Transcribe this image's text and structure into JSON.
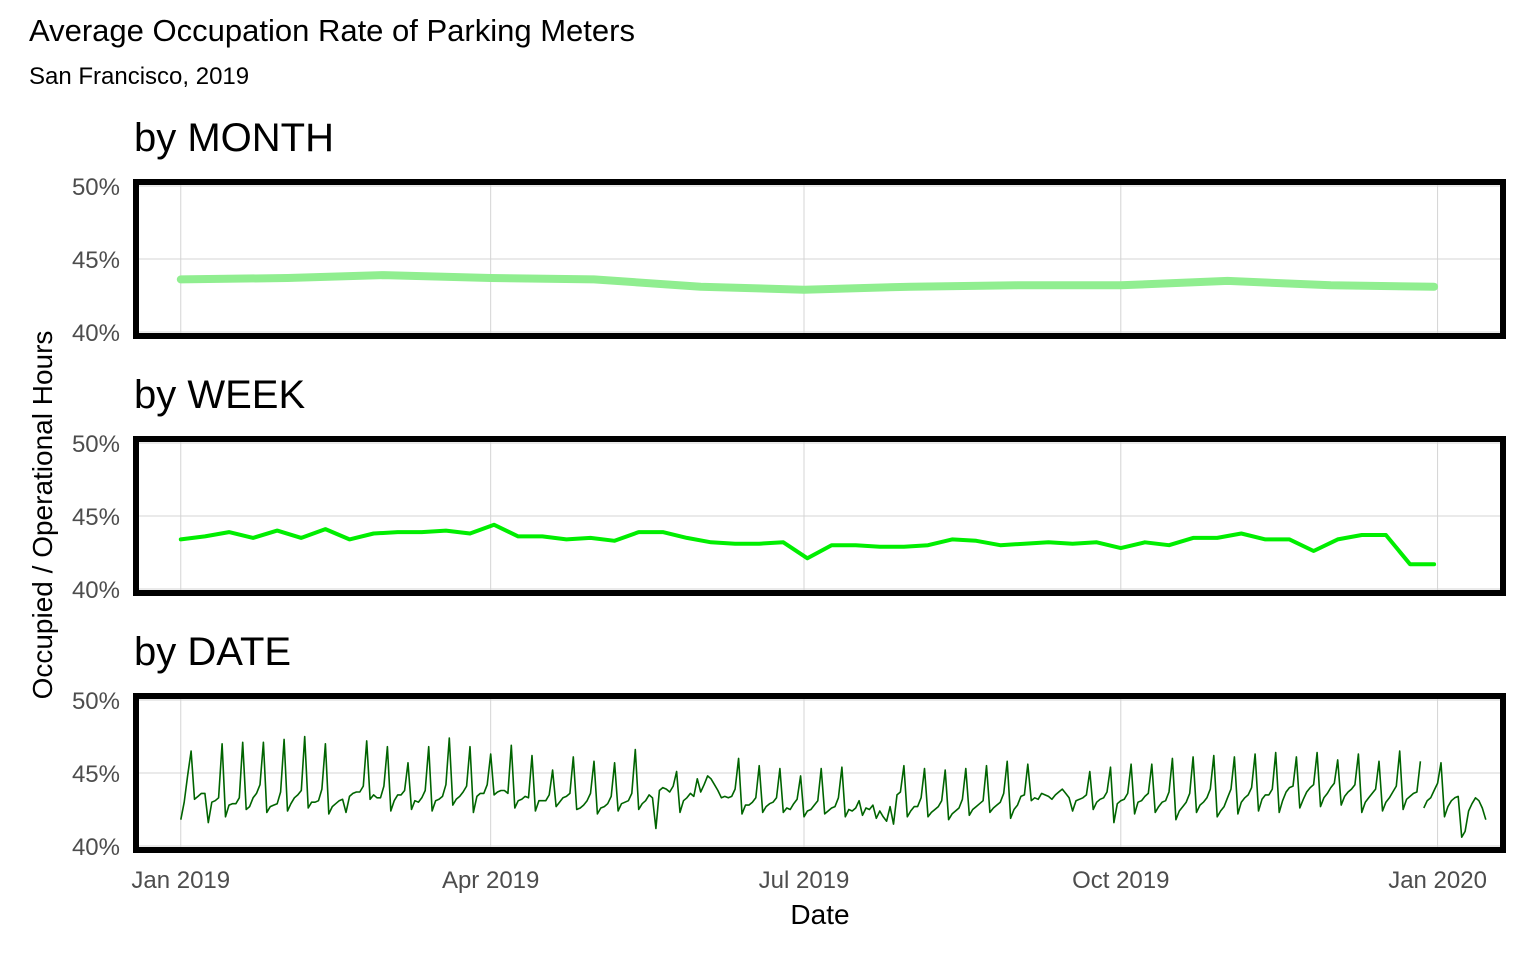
{
  "chart_data": {
    "type": "line",
    "title": "Average Occupation Rate of Parking Meters",
    "subtitle": "San Francisco, 2019",
    "xlabel": "Date",
    "ylabel": "Occupied / Operational Hours",
    "x_ticks": [
      "Jan 2019",
      "Apr 2019",
      "Jul 2019",
      "Oct 2019",
      "Jan 2020"
    ],
    "x_tick_dates": [
      "2019-01-01",
      "2019-04-01",
      "2019-07-01",
      "2019-10-01",
      "2020-01-01"
    ],
    "xlim": [
      "2018-12-19",
      "2020-01-20"
    ],
    "y_ticks": [
      "40%",
      "45%",
      "50%"
    ],
    "y_tick_values": [
      40,
      45,
      50
    ],
    "ylim": [
      40,
      50
    ],
    "grid": true,
    "panels": [
      {
        "title": "by MONTH",
        "color": "#90ee90",
        "x": [
          "2019-01-01",
          "2019-02-01",
          "2019-03-01",
          "2019-04-01",
          "2019-05-01",
          "2019-06-01",
          "2019-07-01",
          "2019-08-01",
          "2019-09-01",
          "2019-10-01",
          "2019-11-01",
          "2019-12-01",
          "2019-12-31"
        ],
        "values": [
          43.6,
          43.7,
          43.9,
          43.7,
          43.6,
          43.1,
          42.9,
          43.1,
          43.2,
          43.2,
          43.5,
          43.2,
          43.1
        ]
      },
      {
        "title": "by WEEK",
        "color": "#00ee00",
        "x": [
          "2019-01-01",
          "2019-01-08",
          "2019-01-15",
          "2019-01-22",
          "2019-01-29",
          "2019-02-05",
          "2019-02-12",
          "2019-02-19",
          "2019-02-26",
          "2019-03-05",
          "2019-03-12",
          "2019-03-19",
          "2019-03-26",
          "2019-04-02",
          "2019-04-09",
          "2019-04-16",
          "2019-04-23",
          "2019-04-30",
          "2019-05-07",
          "2019-05-14",
          "2019-05-21",
          "2019-05-28",
          "2019-06-04",
          "2019-06-11",
          "2019-06-18",
          "2019-06-25",
          "2019-07-02",
          "2019-07-09",
          "2019-07-16",
          "2019-07-23",
          "2019-07-30",
          "2019-08-06",
          "2019-08-13",
          "2019-08-20",
          "2019-08-27",
          "2019-09-03",
          "2019-09-10",
          "2019-09-17",
          "2019-09-24",
          "2019-10-01",
          "2019-10-08",
          "2019-10-15",
          "2019-10-22",
          "2019-10-29",
          "2019-11-05",
          "2019-11-12",
          "2019-11-19",
          "2019-11-26",
          "2019-12-03",
          "2019-12-10",
          "2019-12-17",
          "2019-12-24",
          "2019-12-31"
        ],
        "values": [
          43.4,
          43.6,
          43.9,
          43.5,
          44.0,
          43.5,
          44.1,
          43.4,
          43.8,
          43.9,
          43.9,
          44.0,
          43.8,
          44.4,
          43.6,
          43.6,
          43.4,
          43.5,
          43.3,
          43.9,
          43.9,
          43.5,
          43.2,
          43.1,
          43.1,
          43.2,
          42.1,
          43.0,
          43.0,
          42.9,
          42.9,
          43.0,
          43.4,
          43.3,
          43.0,
          43.1,
          43.2,
          43.1,
          43.2,
          42.8,
          43.2,
          43.0,
          43.5,
          43.5,
          43.8,
          43.4,
          43.4,
          42.6,
          43.4,
          43.7,
          43.7,
          41.7,
          41.7
        ]
      },
      {
        "title": "by DATE",
        "color": "#006400",
        "start": "2019-01-01",
        "step_days": 1,
        "gaps": [
          [
            360,
            361
          ]
        ],
        "values": [
          41.8,
          43.0,
          44.8,
          46.5,
          43.2,
          43.4,
          43.6,
          43.6,
          41.6,
          43.0,
          43.1,
          43.3,
          47.0,
          42.0,
          42.8,
          42.9,
          42.9,
          43.3,
          47.1,
          42.5,
          42.7,
          43.3,
          43.6,
          44.2,
          47.1,
          42.3,
          42.7,
          42.8,
          42.9,
          43.7,
          47.3,
          42.4,
          42.9,
          43.3,
          43.5,
          43.8,
          47.5,
          42.6,
          43.0,
          43.0,
          43.1,
          43.9,
          47.0,
          42.2,
          42.7,
          42.9,
          43.1,
          43.2,
          42.3,
          43.4,
          43.6,
          43.7,
          43.7,
          44.1,
          47.2,
          43.2,
          43.5,
          43.3,
          43.3,
          44.1,
          46.8,
          42.4,
          43.1,
          43.5,
          43.5,
          43.8,
          45.7,
          42.5,
          43.1,
          43.0,
          43.3,
          43.8,
          46.8,
          42.4,
          43.1,
          43.2,
          43.4,
          44.2,
          47.4,
          42.8,
          43.2,
          43.4,
          43.7,
          44.1,
          46.8,
          42.3,
          43.4,
          43.6,
          43.6,
          44.2,
          46.3,
          43.5,
          43.7,
          43.8,
          43.8,
          43.6,
          46.9,
          42.6,
          43.1,
          43.2,
          43.4,
          43.3,
          46.2,
          42.4,
          43.1,
          43.1,
          43.1,
          43.5,
          45.2,
          42.7,
          43.0,
          43.3,
          43.4,
          43.6,
          46.1,
          42.5,
          42.6,
          42.8,
          43.1,
          43.6,
          45.8,
          42.2,
          42.6,
          42.7,
          42.9,
          43.4,
          45.7,
          42.4,
          42.9,
          43.0,
          43.1,
          43.6,
          46.6,
          42.5,
          42.9,
          43.1,
          43.5,
          43.3,
          41.2,
          43.8,
          44.0,
          43.9,
          43.7,
          44.1,
          45.1,
          42.3,
          43.1,
          43.3,
          43.6,
          43.4,
          44.6,
          43.7,
          44.2,
          44.8,
          44.6,
          44.2,
          43.8,
          43.3,
          43.4,
          43.3,
          43.4,
          43.9,
          46.0,
          42.2,
          42.8,
          42.8,
          43.0,
          43.3,
          45.5,
          42.3,
          42.7,
          42.9,
          43.0,
          43.3,
          45.3,
          42.3,
          42.6,
          42.5,
          42.9,
          43.2,
          44.8,
          42.0,
          42.4,
          42.5,
          42.8,
          43.1,
          45.3,
          42.2,
          42.4,
          42.6,
          42.7,
          43.3,
          45.4,
          42.0,
          42.5,
          42.4,
          42.6,
          43.1,
          42.1,
          42.6,
          42.5,
          42.8,
          41.9,
          42.4,
          42.0,
          41.7,
          42.7,
          41.5,
          43.5,
          43.7,
          45.5,
          42.0,
          42.4,
          42.7,
          42.7,
          43.3,
          45.3,
          42.0,
          42.3,
          42.5,
          42.7,
          43.1,
          45.2,
          41.8,
          42.2,
          42.4,
          42.6,
          43.2,
          45.3,
          42.1,
          42.5,
          42.7,
          42.9,
          43.1,
          45.5,
          42.3,
          42.6,
          42.8,
          43.0,
          43.6,
          45.8,
          41.9,
          42.5,
          42.8,
          43.4,
          43.5,
          45.6,
          43.1,
          43.3,
          43.2,
          43.6,
          43.5,
          43.4,
          43.2,
          43.5,
          43.7,
          43.9,
          43.6,
          43.3,
          42.4,
          43.1,
          43.2,
          43.3,
          43.5,
          45.1,
          42.5,
          43.0,
          43.2,
          43.3,
          43.7,
          45.4,
          41.6,
          42.9,
          43.1,
          43.2,
          43.6,
          45.6,
          42.2,
          43.0,
          43.1,
          43.4,
          43.6,
          45.6,
          42.3,
          42.7,
          43.0,
          43.1,
          43.7,
          46.0,
          41.8,
          42.4,
          42.7,
          43.0,
          43.6,
          46.1,
          42.3,
          42.8,
          43.0,
          43.3,
          43.9,
          46.2,
          42.0,
          42.4,
          42.7,
          43.3,
          43.9,
          46.1,
          42.2,
          43.0,
          43.3,
          43.5,
          44.0,
          46.3,
          42.4,
          43.2,
          43.5,
          43.5,
          43.9,
          46.4,
          42.3,
          43.1,
          43.7,
          44.0,
          44.1,
          46.1,
          42.6,
          43.2,
          43.7,
          44.0,
          44.2,
          46.4,
          42.7,
          43.3,
          43.6,
          44.0,
          44.3,
          45.9,
          42.8,
          43.4,
          43.7,
          43.9,
          44.2,
          46.3,
          42.3,
          43.0,
          43.3,
          43.6,
          43.9,
          45.8,
          42.4,
          43.0,
          43.3,
          43.7,
          44.1,
          46.5,
          42.5,
          43.2,
          43.4,
          43.6,
          43.7,
          45.8,
          42.6,
          43.1,
          43.3,
          43.8,
          44.3,
          45.7,
          42.0,
          42.7,
          43.1,
          43.3,
          43.4,
          40.6,
          41.0,
          42.4,
          42.9,
          43.3,
          43.1,
          42.6,
          41.8
        ]
      }
    ]
  }
}
